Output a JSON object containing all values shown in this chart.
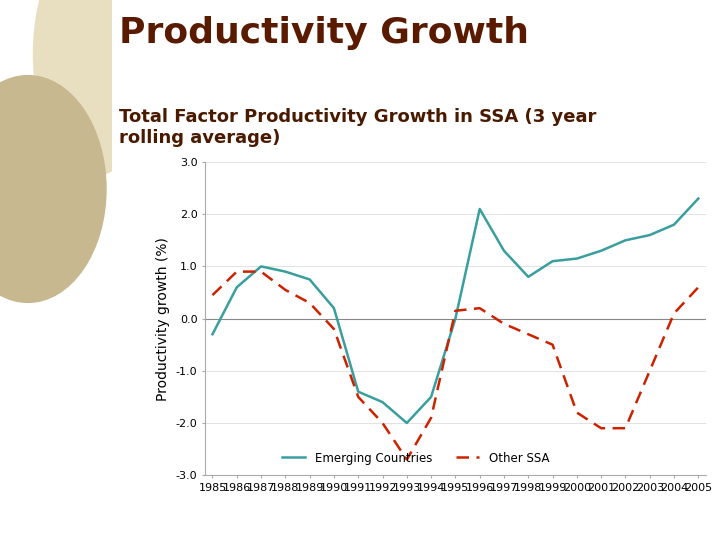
{
  "title": "Productivity Growth",
  "subtitle": "Total Factor Productivity Growth in SSA (3 year\nrolling average)",
  "ylabel": "Productivity growth (%)",
  "years": [
    1985,
    1986,
    1987,
    1988,
    1989,
    1990,
    1991,
    1992,
    1993,
    1994,
    1995,
    1996,
    1997,
    1998,
    1999,
    2000,
    2001,
    2002,
    2003,
    2004,
    2005
  ],
  "emerging_countries": [
    -0.3,
    0.6,
    1.0,
    0.9,
    0.75,
    0.2,
    -1.4,
    -1.6,
    -2.0,
    -1.5,
    0.0,
    2.1,
    1.3,
    0.8,
    1.1,
    1.15,
    1.3,
    1.5,
    1.6,
    1.8,
    2.3
  ],
  "other_ssa": [
    0.45,
    0.9,
    0.9,
    0.55,
    0.3,
    -0.2,
    -1.5,
    -2.0,
    -2.7,
    -1.9,
    0.15,
    0.2,
    -0.1,
    -0.3,
    -0.5,
    -1.8,
    -2.1,
    -2.1,
    -1.0,
    0.1,
    0.6
  ],
  "emerging_color": "#3a9e9e",
  "other_ssa_color": "#cc2200",
  "title_color": "#5a1a00",
  "subtitle_color": "#4a1a00",
  "bg_left_color": "#d9cca8",
  "bg_chart_color": "#ffffff",
  "ylim": [
    -3.0,
    3.0
  ],
  "yticks": [
    -3.0,
    -2.0,
    -1.0,
    0.0,
    1.0,
    2.0,
    3.0
  ],
  "legend_emerging": "Emerging Countries",
  "legend_other": "Other SSA",
  "title_fontsize": 26,
  "subtitle_fontsize": 13,
  "ylabel_fontsize": 10,
  "tick_fontsize": 8
}
